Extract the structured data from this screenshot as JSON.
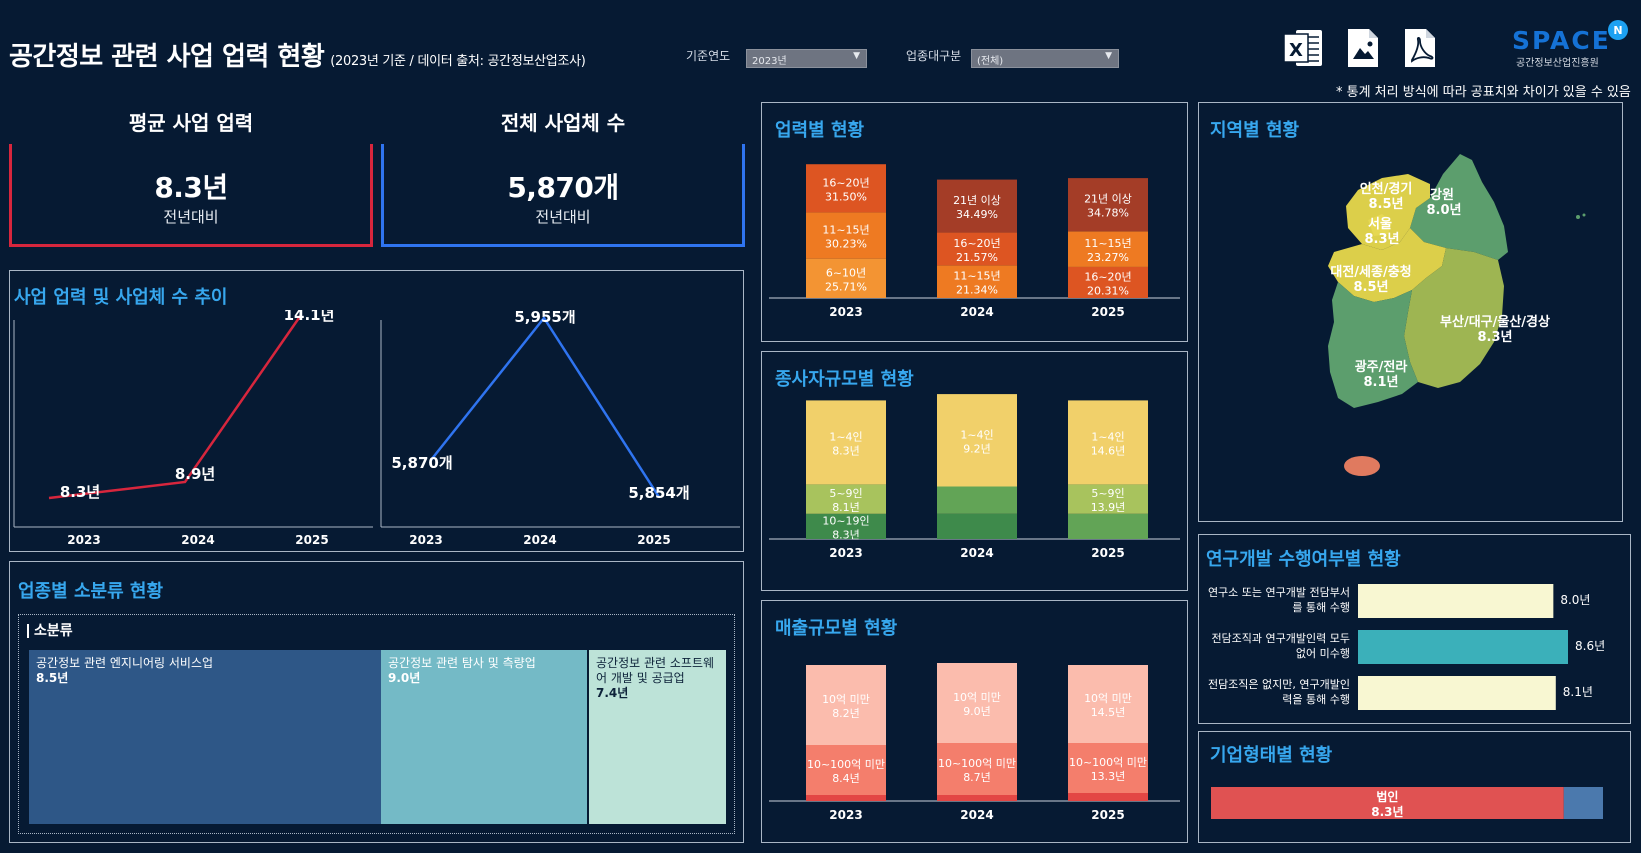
{
  "header": {
    "title": "공간정보 관련 사업 업력 현황",
    "subtitle": "(2023년 기준 / 데이터 출처: 공간정보산업조사)",
    "filter_year_label": "기준연도",
    "filter_year_value": "2023년",
    "filter_industry_label": "업종대구분",
    "filter_industry_value": "(전체)",
    "export_icons": [
      "excel-icon",
      "image-icon",
      "pdf-icon"
    ],
    "logo_text": "SPACE",
    "logo_org": "공간정보산업진흥원",
    "note": "* 통계 처리 방식에 따라 공표치와 차이가 있을 수 있음"
  },
  "kpi": {
    "avg": {
      "label": "평균 사업 업력",
      "value": "8.3년",
      "sub": "전년대비",
      "color": "#d7263d"
    },
    "count": {
      "label": "전체 사업체 수",
      "value": "5,870개",
      "sub": "전년대비",
      "color": "#2f74f0"
    }
  },
  "trend": {
    "title": "사업 업력 및 사업체 수 추이",
    "years": [
      "2023",
      "2024",
      "2025"
    ],
    "years_val": [
      8.3,
      8.9,
      14.1
    ],
    "years_labels": [
      "8.3년",
      "8.9년",
      "14.1년"
    ],
    "count_val": [
      5870,
      5955,
      5854
    ],
    "count_labels": [
      "5,870개",
      "5,955개",
      "5,854개"
    ]
  },
  "industry": {
    "title": "업종별 소분류 현황",
    "section_label": "소분류",
    "cells": [
      {
        "name": "공간정보 관련 엔지니어링 서비스업",
        "value": "8.5년",
        "color": "#2e5787"
      },
      {
        "name": "공간정보 관련 탐사 및 측량업",
        "value": "9.0년",
        "color": "#74bac6"
      },
      {
        "name": "공간정보 관련 소프트웨어 개발 및 공급업",
        "value": "7.4년",
        "color": "#bde3d8"
      }
    ]
  },
  "history": {
    "title": "업력별 현황",
    "years": [
      "2023",
      "2024",
      "2025"
    ],
    "stacks": [
      [
        {
          "label": "6~10년",
          "pct": "25.71%",
          "v": 25.71,
          "color": "#f39433"
        },
        {
          "label": "11~15년",
          "pct": "30.23%",
          "v": 30.23,
          "color": "#ee7a22"
        },
        {
          "label": "16~20년",
          "pct": "31.50%",
          "v": 31.5,
          "color": "#dd5522"
        }
      ],
      [
        {
          "label": "11~15년",
          "pct": "21.34%",
          "v": 21.34,
          "color": "#ee7a22"
        },
        {
          "label": "16~20년",
          "pct": "21.57%",
          "v": 21.57,
          "color": "#dd5522"
        },
        {
          "label": "21년 이상",
          "pct": "34.49%",
          "v": 34.49,
          "color": "#a43d27"
        }
      ],
      [
        {
          "label": "16~20년",
          "pct": "20.31%",
          "v": 20.31,
          "color": "#dd5522"
        },
        {
          "label": "11~15년",
          "pct": "23.27%",
          "v": 23.27,
          "color": "#ee7a22"
        },
        {
          "label": "21년 이상",
          "pct": "34.78%",
          "v": 34.78,
          "color": "#a43d27"
        }
      ]
    ]
  },
  "employees": {
    "title": "종사자규모별 현황",
    "years": [
      "2023",
      "2024",
      "2025"
    ],
    "stacks": [
      [
        {
          "label": "10~19인",
          "val": "8.3년",
          "color": "#3e8a4b",
          "v": 12
        },
        {
          "label": "5~9인",
          "val": "8.1년",
          "color": "#a8c35d",
          "v": 14
        },
        {
          "label": "1~4인",
          "val": "8.3년",
          "color": "#f1d06a",
          "v": 40
        }
      ],
      [
        {
          "label": "",
          "val": "",
          "color": "#3e8a4b",
          "v": 12
        },
        {
          "label": "",
          "val": "",
          "color": "#62a456",
          "v": 13
        },
        {
          "label": "1~4인",
          "val": "9.2년",
          "color": "#f1d06a",
          "v": 44
        }
      ],
      [
        {
          "label": "",
          "val": "",
          "color": "#62a456",
          "v": 12
        },
        {
          "label": "5~9인",
          "val": "13.9년",
          "color": "#a8c35d",
          "v": 14
        },
        {
          "label": "1~4인",
          "val": "14.6년",
          "color": "#f1d06a",
          "v": 40
        }
      ]
    ]
  },
  "sales": {
    "title": "매출규모별 현황",
    "years": [
      "2023",
      "2024",
      "2025"
    ],
    "stacks": [
      [
        {
          "label": "",
          "val": "",
          "color": "#e34644",
          "v": 3
        },
        {
          "label": "10~100억 미만",
          "val": "8.4년",
          "color": "#f47e6c",
          "v": 25
        },
        {
          "label": "10억 미만",
          "val": "8.2년",
          "color": "#fbbcad",
          "v": 40
        }
      ],
      [
        {
          "label": "",
          "val": "",
          "color": "#e34644",
          "v": 3
        },
        {
          "label": "10~100억 미만",
          "val": "8.7년",
          "color": "#f47e6c",
          "v": 26
        },
        {
          "label": "10억 미만",
          "val": "9.0년",
          "color": "#fbbcad",
          "v": 40
        }
      ],
      [
        {
          "label": "",
          "val": "",
          "color": "#e34644",
          "v": 4
        },
        {
          "label": "10~100억 미만",
          "val": "13.3년",
          "color": "#f47e6c",
          "v": 25
        },
        {
          "label": "10억 미만",
          "val": "14.5년",
          "color": "#fbbcad",
          "v": 39
        }
      ]
    ]
  },
  "region": {
    "title": "지역별 현황",
    "labels": [
      {
        "name": "인천/경기",
        "val": "8.5년"
      },
      {
        "name": "강원",
        "val": "8.0년"
      },
      {
        "name": "서울",
        "val": "8.3년"
      },
      {
        "name": "대전/세종/충청",
        "val": "8.5년"
      },
      {
        "name": "부산/대구/울산/경상",
        "val": "8.3년"
      },
      {
        "name": "광주/전라",
        "val": "8.1년"
      }
    ],
    "colors": {
      "high": "#dccf4a",
      "mid": "#9eb552",
      "low": "#5c9e6d",
      "jeju": "#e07a5f"
    }
  },
  "rnd": {
    "title": "연구개발 수행여부별 현황",
    "rows": [
      {
        "label1": "연구소 또는 연구개발 전담부서",
        "label2": "를 통해 수행",
        "value": 8.0,
        "text": "8.0년",
        "color": "#f8f7d2"
      },
      {
        "label1": "전담조직과 연구개발인력 모두",
        "label2": "없어 미수행",
        "value": 8.6,
        "text": "8.6년",
        "color": "#3bb0ba"
      },
      {
        "label1": "전담조직은 없지만, 연구개발인",
        "label2": "력을 통해 수행",
        "value": 8.1,
        "text": "8.1년",
        "color": "#f8f7d2"
      }
    ]
  },
  "corp": {
    "title": "기업형태별 현황",
    "label": "법인",
    "value": "8.3년",
    "share": 0.9
  }
}
